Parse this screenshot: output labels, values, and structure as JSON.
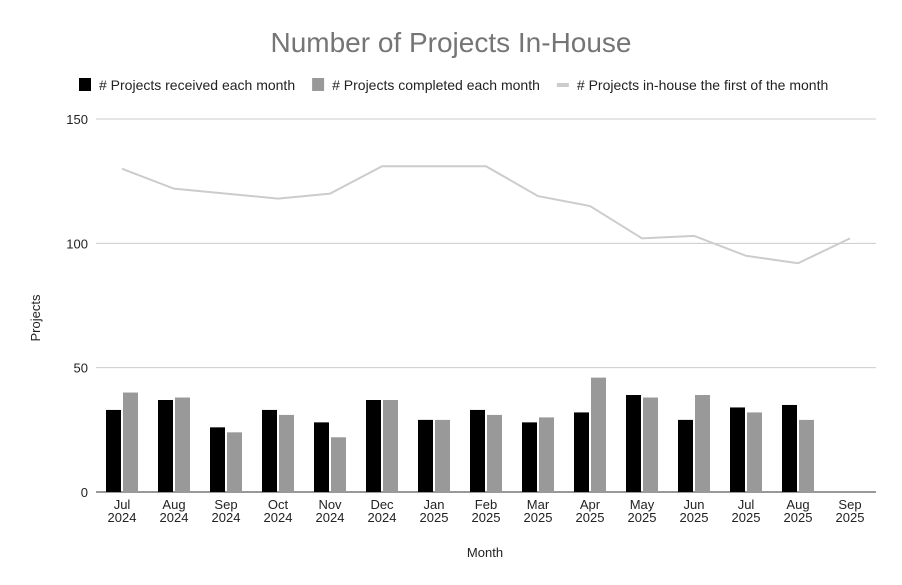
{
  "chart_data": {
    "type": "bar",
    "title": "Number of Projects In-House",
    "xlabel": "Month",
    "ylabel": "Projects",
    "ylim": [
      0,
      150
    ],
    "yticks": [
      0,
      50,
      100,
      150
    ],
    "legend_position": "top",
    "categories": [
      [
        "Jul",
        "2024"
      ],
      [
        "Aug",
        "2024"
      ],
      [
        "Sep",
        "2024"
      ],
      [
        "Oct",
        "2024"
      ],
      [
        "Nov",
        "2024"
      ],
      [
        "Dec",
        "2024"
      ],
      [
        "Jan",
        "2025"
      ],
      [
        "Feb",
        "2025"
      ],
      [
        "Mar",
        "2025"
      ],
      [
        "Apr",
        "2025"
      ],
      [
        "May",
        "2025"
      ],
      [
        "Jun",
        "2025"
      ],
      [
        "Jul",
        "2025"
      ],
      [
        "Aug",
        "2025"
      ],
      [
        "Sep",
        "2025"
      ]
    ],
    "series": [
      {
        "name": "# Projects received each month",
        "kind": "bar",
        "color": "#000000",
        "values": [
          33,
          37,
          26,
          33,
          28,
          37,
          29,
          33,
          28,
          32,
          39,
          29,
          34,
          35,
          null
        ]
      },
      {
        "name": "# Projects completed each month",
        "kind": "bar",
        "color": "#999999",
        "values": [
          40,
          38,
          24,
          31,
          22,
          37,
          29,
          31,
          30,
          46,
          38,
          39,
          32,
          29,
          null
        ]
      },
      {
        "name": "# Projects in-house the first of the month",
        "kind": "line",
        "color": "#cccccc",
        "values": [
          130,
          122,
          120,
          118,
          120,
          131,
          131,
          131,
          119,
          115,
          102,
          103,
          95,
          92,
          102
        ]
      }
    ]
  }
}
